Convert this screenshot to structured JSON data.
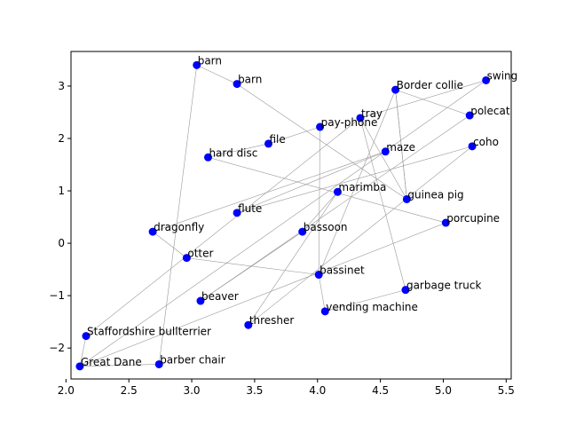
{
  "chart_data": {
    "type": "scatter",
    "title": "",
    "xlabel": "",
    "ylabel": "",
    "xlim": [
      2.04,
      5.54
    ],
    "ylim": [
      -2.59,
      3.66
    ],
    "xticks": [
      2.0,
      2.5,
      3.0,
      3.5,
      4.0,
      4.5,
      5.0,
      5.5
    ],
    "xtick_labels": [
      "2.0",
      "2.5",
      "3.0",
      "3.5",
      "4.0",
      "4.5",
      "5.0",
      "5.5"
    ],
    "yticks": [
      -2,
      -1,
      0,
      1,
      2,
      3
    ],
    "ytick_labels": [
      "−2",
      "−1",
      "0",
      "1",
      "2",
      "3"
    ],
    "grid": false,
    "point_color": "#0000ff",
    "line_color": "#999999",
    "points": [
      {
        "label": "barn",
        "x": 3.04,
        "y": 3.4
      },
      {
        "label": "barn",
        "x": 3.36,
        "y": 3.04
      },
      {
        "label": "swing",
        "x": 5.34,
        "y": 3.11
      },
      {
        "label": "Border collie",
        "x": 4.62,
        "y": 2.93
      },
      {
        "label": "tray",
        "x": 4.34,
        "y": 2.39
      },
      {
        "label": "polecat",
        "x": 5.21,
        "y": 2.44
      },
      {
        "label": "pay-phone",
        "x": 4.02,
        "y": 2.22
      },
      {
        "label": "file",
        "x": 3.61,
        "y": 1.9
      },
      {
        "label": "coho",
        "x": 5.23,
        "y": 1.85
      },
      {
        "label": "maze",
        "x": 4.54,
        "y": 1.75
      },
      {
        "label": "hard disc",
        "x": 3.13,
        "y": 1.64
      },
      {
        "label": "marimba",
        "x": 4.16,
        "y": 0.98
      },
      {
        "label": "guinea pig",
        "x": 4.71,
        "y": 0.84
      },
      {
        "label": "flute",
        "x": 3.36,
        "y": 0.58
      },
      {
        "label": "porcupine",
        "x": 5.02,
        "y": 0.39
      },
      {
        "label": "dragonfly",
        "x": 2.69,
        "y": 0.22
      },
      {
        "label": "bassoon",
        "x": 3.88,
        "y": 0.22
      },
      {
        "label": "otter",
        "x": 2.96,
        "y": -0.28
      },
      {
        "label": "bassinet",
        "x": 4.01,
        "y": -0.6
      },
      {
        "label": "garbage truck",
        "x": 4.7,
        "y": -0.89
      },
      {
        "label": "beaver",
        "x": 3.07,
        "y": -1.1
      },
      {
        "label": "vending machine",
        "x": 4.06,
        "y": -1.3
      },
      {
        "label": "thresher",
        "x": 3.45,
        "y": -1.56
      },
      {
        "label": "Staffordshire bullterrier",
        "x": 2.16,
        "y": -1.77
      },
      {
        "label": "Great Dane",
        "x": 2.11,
        "y": -2.35
      },
      {
        "label": "barber chair",
        "x": 2.74,
        "y": -2.31
      }
    ],
    "path_order": [
      23,
      24,
      25,
      0,
      1,
      12,
      3,
      5,
      20,
      16,
      11,
      22,
      8,
      13,
      9,
      15,
      17,
      18,
      6,
      7,
      10,
      14,
      24,
      2,
      4,
      19,
      21,
      18,
      3,
      12,
      4,
      23
    ]
  }
}
